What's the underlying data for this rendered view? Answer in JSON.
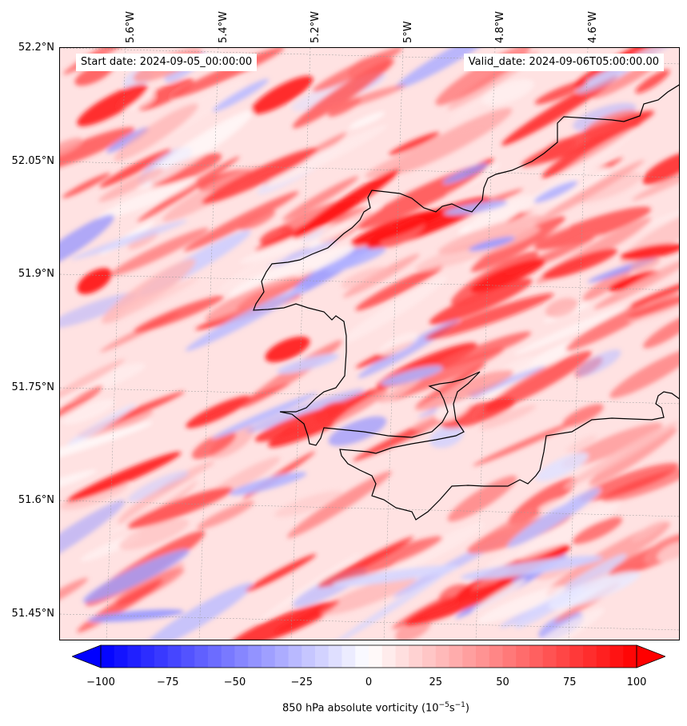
{
  "header": {
    "start_date": "Start date: 2024-09-05_00:00:00",
    "valid_date": "Valid_date: 2024-09-06T05:00:00.00"
  },
  "axes": {
    "lon_labels": [
      "5.6°W",
      "5.4°W",
      "5.2°W",
      "5°W",
      "4.8°W",
      "4.6°W"
    ],
    "lat_labels": [
      "52.2°N",
      "52.05°N",
      "51.9°N",
      "51.75°N",
      "51.6°N",
      "51.45°N"
    ]
  },
  "colorbar": {
    "ticks": [
      "−100",
      "−75",
      "−50",
      "−25",
      "0",
      "25",
      "50",
      "75",
      "100"
    ],
    "label_main": "850 hPa absolute vorticity (10",
    "label_exp1": "−5",
    "label_mid": "s",
    "label_exp2": "−1",
    "label_end": ")",
    "min": -100,
    "max": 100,
    "extend": "both",
    "colormap": "bwr"
  },
  "colors": {
    "coastline": "#000000",
    "gridline": "#9a9a9a",
    "min_color": "#0000ff",
    "mid_color": "#ffffff",
    "max_color": "#ff0000"
  }
}
